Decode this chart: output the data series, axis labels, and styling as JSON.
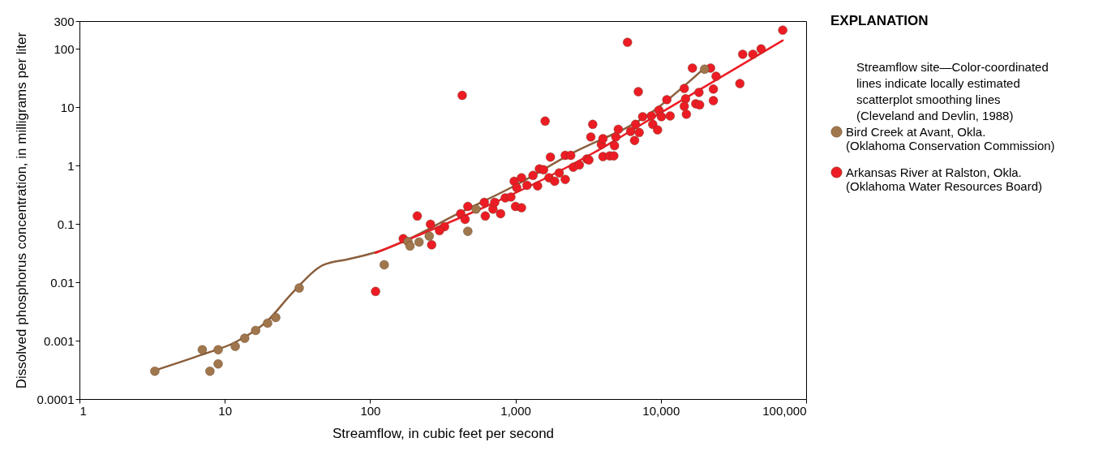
{
  "chart_data": {
    "type": "scatter",
    "xlabel": "Streamflow, in cubic feet per second",
    "ylabel": "Dissolved phosphorus concentration, in milligrams per liter",
    "legend_title": "EXPLANATION",
    "annotations": [
      "Streamflow site—Color-coordinated lines indicate locally estimated scatterplot smoothing lines (Cleveland and Devlin, 1988)"
    ],
    "log": "xy",
    "grid": false,
    "legend": "right",
    "marker": "circle",
    "xlim": [
      1,
      100000
    ],
    "xticks": [
      1,
      10,
      100,
      {
        "value": 1000,
        "label": "1,000"
      },
      {
        "value": 10000,
        "label": "10,000"
      },
      {
        "value": 100000,
        "label": "100,000"
      }
    ],
    "ylim": [
      0.0001,
      300
    ],
    "yticks": [
      0.0001,
      0.001,
      0.01,
      0.1,
      1,
      10,
      100,
      300
    ],
    "series": [
      {
        "type": "line",
        "marker": "none",
        "color": "#8b5e3c",
        "x": [
          3.3,
          7,
          11.8,
          19.7,
          29,
          48,
          71,
          119,
          175,
          380,
          1050,
          2300,
          8300,
          20000
        ],
        "values": [
          0.00031,
          0.00058,
          0.00094,
          0.0022,
          0.0065,
          0.02,
          0.025,
          0.035,
          0.052,
          0.14,
          0.49,
          1.5,
          7.6,
          47
        ]
      },
      {
        "type": "line",
        "marker": "none",
        "color": "#ed1c24",
        "x": [
          109,
          3360,
          10700,
          69000
        ],
        "values": [
          0.032,
          1.6,
          8.9,
          140
        ]
      },
      {
        "name": "Bird Creek at Avant, Okla. (Oklahoma Conservation Commission)",
        "color": "#a0764c",
        "x": [
          3.3,
          7,
          7.9,
          9,
          9,
          11.8,
          13.7,
          16.3,
          19.7,
          22.4,
          32.5,
          125,
          182,
          188,
          217,
          255,
          470,
          535,
          20000
        ],
        "values": [
          0.0003,
          0.0007,
          0.0003,
          0.0007,
          0.0004,
          0.0008,
          0.0011,
          0.0015,
          0.002,
          0.0025,
          0.008,
          0.02,
          0.05,
          0.042,
          0.049,
          0.062,
          0.075,
          0.18,
          45
        ]
      },
      {
        "name": "Arkansas River at Ralston, Okla. (Oklahoma Water Resources Board)",
        "color": "#ed1c24",
        "x": [
          109,
          430,
          5900,
          1600,
          7000,
          69000,
          169,
          211,
          260,
          265,
          325,
          300,
          420,
          470,
          450,
          610,
          620,
          700,
          790,
          720,
          850,
          930,
          1000,
          1100,
          980,
          1100,
          1020,
          1200,
          1320,
          1420,
          1460,
          1560,
          1700,
          1740,
          1860,
          2000,
          2200,
          2200,
          2400,
          2500,
          2750,
          3100,
          3300,
          3400,
          3900,
          4000,
          4900,
          4800,
          5100,
          4000,
          4450,
          4750,
          3200,
          6600,
          6200,
          6700,
          7500,
          7100,
          8600,
          8800,
          9700,
          9500,
          10100,
          11600,
          11000,
          14500,
          14800,
          14500,
          15000,
          16500,
          17400,
          18300,
          18500,
          22000,
          23000,
          23000,
          24000,
          35000,
          36600,
          43000,
          49000
        ],
        "values": [
          0.007,
          16,
          130,
          5.8,
          18.5,
          210,
          0.056,
          0.137,
          0.099,
          0.044,
          0.09,
          0.077,
          0.15,
          0.2,
          0.12,
          0.235,
          0.137,
          0.18,
          0.15,
          0.235,
          0.28,
          0.29,
          0.2,
          0.19,
          0.54,
          0.62,
          0.42,
          0.46,
          0.68,
          0.45,
          0.88,
          0.85,
          0.62,
          1.4,
          0.54,
          0.75,
          1.5,
          0.58,
          1.5,
          0.94,
          1.03,
          1.3,
          3.1,
          5.1,
          2.3,
          2.9,
          3.1,
          2.2,
          4.2,
          1.43,
          1.47,
          1.47,
          1.25,
          2.7,
          3.85,
          5.1,
          6.9,
          3.7,
          7.1,
          5.1,
          8.9,
          4.1,
          6.9,
          7.1,
          13.5,
          21,
          14,
          10.4,
          7.6,
          47,
          11.5,
          18,
          11,
          47,
          20.5,
          13,
          34,
          25.5,
          81,
          81,
          100
        ]
      }
    ]
  }
}
